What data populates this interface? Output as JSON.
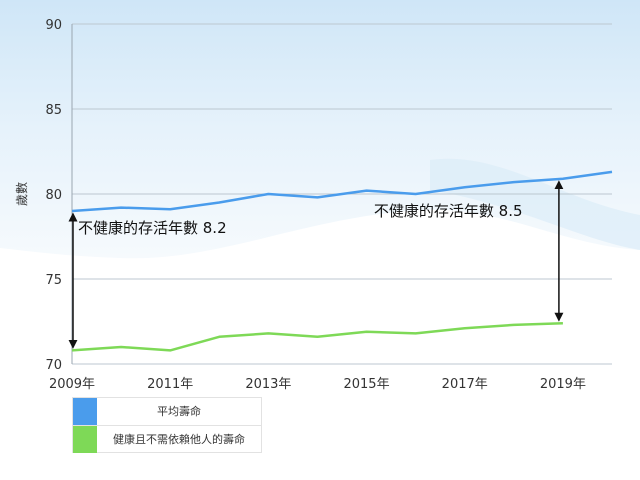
{
  "chart_data": {
    "type": "line",
    "ylabel": "歲數",
    "ylim": [
      70,
      90
    ],
    "yticks": [
      70,
      75,
      80,
      85,
      90
    ],
    "x": [
      2009,
      2010,
      2011,
      2012,
      2013,
      2014,
      2015,
      2016,
      2017,
      2018,
      2019,
      2020
    ],
    "xtick_labels": [
      "2009年",
      "2011年",
      "2013年",
      "2015年",
      "2017年",
      "2019年"
    ],
    "xtick_values": [
      2009,
      2011,
      2013,
      2015,
      2017,
      2019
    ],
    "series": [
      {
        "name": "平均壽命",
        "color": "#4a9cec",
        "x": [
          2009,
          2010,
          2011,
          2012,
          2013,
          2014,
          2015,
          2016,
          2017,
          2018,
          2019,
          2020
        ],
        "values": [
          79.0,
          79.2,
          79.1,
          79.5,
          80.0,
          79.8,
          80.2,
          80.0,
          80.4,
          80.7,
          80.9,
          81.3
        ]
      },
      {
        "name": "健康且不需依賴他人的壽命",
        "color": "#7ed957",
        "x": [
          2009,
          2010,
          2011,
          2012,
          2013,
          2014,
          2015,
          2016,
          2017,
          2018,
          2019
        ],
        "values": [
          70.8,
          71.0,
          70.8,
          71.6,
          71.8,
          71.6,
          71.9,
          71.8,
          72.1,
          72.3,
          72.4
        ]
      }
    ],
    "annotations": [
      {
        "text": "不健康的存活年數 8.2",
        "x": 2009,
        "from": 70.8,
        "to": 79.0
      },
      {
        "text": "不健康的存活年數 8.5",
        "x": 2019,
        "from": 72.4,
        "to": 80.9
      }
    ],
    "legend": "bottom-left",
    "grid": "horizontal"
  }
}
